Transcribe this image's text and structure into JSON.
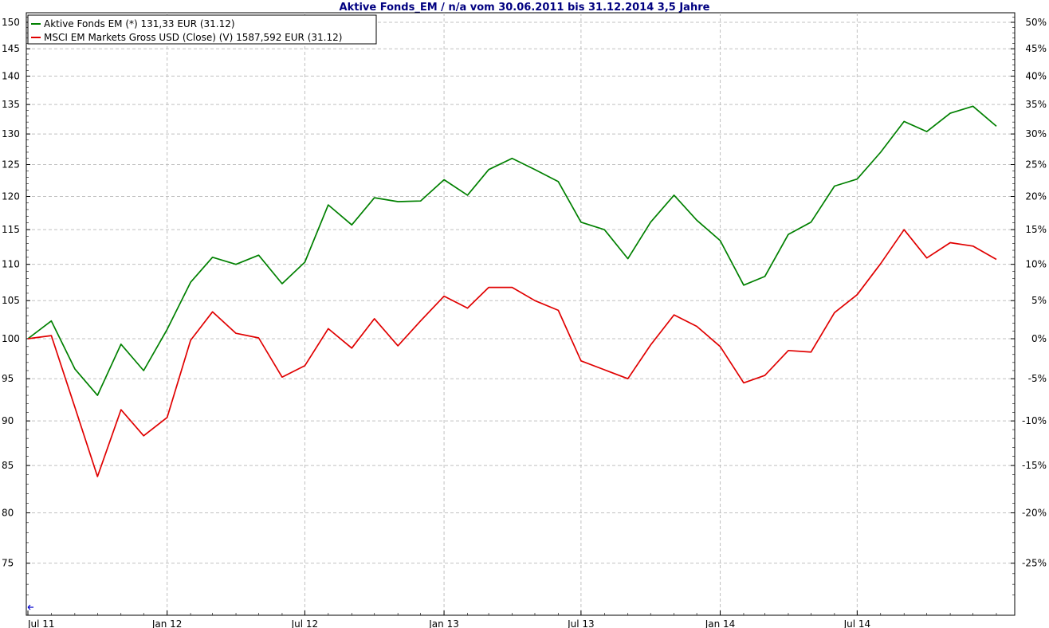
{
  "chart_data": {
    "type": "line",
    "title": "Aktive Fonds_EM / n/a vom 30.06.2011 bis 31.12.2014 3,5 Jahre",
    "xlabel": "",
    "ylabel": "",
    "y_scale": "log",
    "ylim": [
      70,
      152
    ],
    "left_axis_ticks": [
      "75",
      "80",
      "85",
      "90",
      "95",
      "100",
      "105",
      "110",
      "115",
      "120",
      "125",
      "130",
      "135",
      "140",
      "145",
      "150"
    ],
    "right_axis_ticks": [
      "-25%",
      "-20%",
      "-15%",
      "-10%",
      "-5%",
      "0%",
      "5%",
      "10%",
      "15%",
      "20%",
      "25%",
      "30%",
      "35%",
      "40%",
      "45%",
      "50%"
    ],
    "x_ticks": [
      "Jul 11",
      "Jan 12",
      "Jul 12",
      "Jan 13",
      "Jul 13",
      "Jan 14",
      "Jul 14"
    ],
    "grid": true,
    "legend_position": "top-left",
    "x": [
      "2011-06-30",
      "2011-07-31",
      "2011-08-31",
      "2011-09-30",
      "2011-10-31",
      "2011-11-30",
      "2011-12-31",
      "2012-01-31",
      "2012-02-29",
      "2012-03-31",
      "2012-04-30",
      "2012-05-31",
      "2012-06-30",
      "2012-07-31",
      "2012-08-31",
      "2012-09-30",
      "2012-10-31",
      "2012-11-30",
      "2012-12-31",
      "2013-01-31",
      "2013-02-28",
      "2013-03-31",
      "2013-04-30",
      "2013-05-31",
      "2013-06-30",
      "2013-07-31",
      "2013-08-31",
      "2013-09-30",
      "2013-10-31",
      "2013-11-30",
      "2013-12-31",
      "2014-01-31",
      "2014-02-28",
      "2014-03-31",
      "2014-04-30",
      "2014-05-31",
      "2014-06-30",
      "2014-07-31",
      "2014-08-31",
      "2014-09-30",
      "2014-10-31",
      "2014-11-30",
      "2014-12-31"
    ],
    "series": [
      {
        "name": "Aktive Fonds EM (*) 131,33 EUR (31.12)",
        "color": "#008000",
        "values": [
          100,
          102.3,
          96.2,
          93.0,
          99.3,
          96.0,
          101.2,
          107.5,
          111.0,
          110.0,
          111.3,
          107.3,
          110.3,
          118.7,
          115.7,
          119.8,
          119.2,
          119.3,
          122.6,
          120.2,
          124.2,
          126.0,
          124.2,
          122.3,
          116.1,
          115.0,
          110.8,
          116.1,
          120.2,
          116.4,
          113.4,
          107.1,
          108.3,
          114.3,
          116.1,
          121.6,
          122.7,
          127.0,
          132.1,
          130.4,
          133.5,
          134.7,
          131.3
        ]
      },
      {
        "name": "MSCI EM Markets Gross USD (Close) (V) 1587,592 EUR (31.12)",
        "color": "#e00000",
        "values": [
          100,
          100.4,
          91.6,
          83.8,
          91.3,
          88.3,
          90.4,
          99.8,
          103.5,
          100.7,
          100.1,
          95.2,
          96.6,
          101.3,
          98.8,
          102.6,
          99.1,
          102.3,
          105.6,
          104.0,
          106.8,
          106.8,
          105.0,
          103.7,
          97.2,
          96.1,
          95.0,
          99.2,
          103.1,
          101.6,
          99.0,
          94.5,
          95.4,
          98.5,
          98.3,
          103.4,
          105.8,
          110.1,
          115.0,
          110.9,
          113.1,
          112.6,
          110.7
        ]
      }
    ]
  }
}
